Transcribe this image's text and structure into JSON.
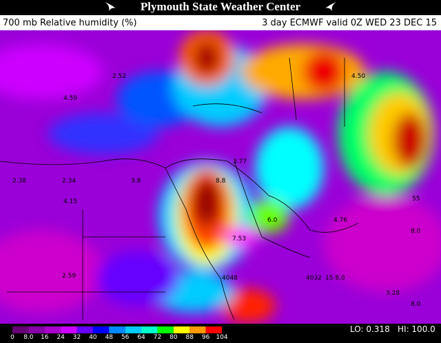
{
  "header": {
    "title": "Plymouth State Weather Center"
  },
  "subheader": {
    "left": "700 mb Relative humidity (%)",
    "right": "3 day ECMWF valid 0Z WED 23 DEC 15"
  },
  "map_labels": [
    "2.52",
    "4.59",
    "2.38",
    "2.34",
    "3.8",
    "4.15",
    "3.77",
    "8.8",
    "6.0",
    "7.53",
    "4.76",
    "2.59",
    "4048",
    "4032",
    "15 8.0",
    "3.28",
    "8.0",
    "8.0",
    "4.50",
    "55"
  ],
  "colorbar": {
    "labels": [
      "0",
      "8.0",
      "16",
      "24",
      "32",
      "40",
      "48",
      "56",
      "64",
      "72",
      "80",
      "88",
      "96",
      "104"
    ]
  },
  "footer": {
    "lo": "LO: 0.318",
    "hi": "HI: 100.0"
  }
}
